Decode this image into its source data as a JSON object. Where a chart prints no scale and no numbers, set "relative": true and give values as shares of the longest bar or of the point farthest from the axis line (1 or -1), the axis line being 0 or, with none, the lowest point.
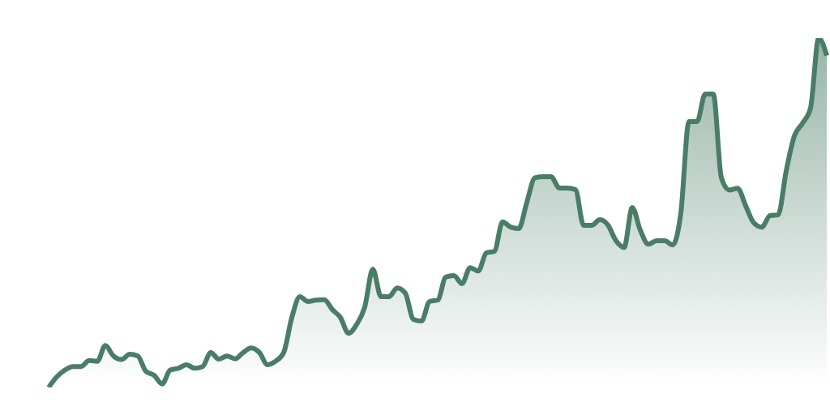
{
  "chart_data": {
    "type": "area",
    "relative": true,
    "color": "#4a7d68",
    "categories": [
      null,
      null,
      null,
      null,
      null,
      null,
      null,
      null,
      null,
      null,
      null,
      null,
      null,
      null,
      null,
      null,
      null,
      null,
      null,
      null,
      null,
      null,
      null,
      null,
      null,
      null,
      null,
      null,
      null,
      null,
      null,
      null,
      null,
      null,
      null,
      null,
      null,
      null,
      null,
      null,
      null,
      null,
      null,
      null,
      null,
      null,
      null,
      null,
      null,
      null,
      null,
      null,
      null,
      null,
      null,
      null,
      null,
      null,
      null,
      null,
      null,
      null,
      null,
      null,
      null,
      null,
      null,
      null,
      null,
      null,
      null,
      null,
      null,
      null,
      null,
      null,
      null,
      null,
      null,
      null,
      null,
      null,
      null,
      null,
      null,
      null,
      null,
      null,
      null,
      null,
      null,
      null,
      null,
      null,
      null,
      null,
      null
    ],
    "values": [
      0,
      0.03,
      0.05,
      0.06,
      0.06,
      0.077,
      0.075,
      0.12,
      0.09,
      0.08,
      0.095,
      0.09,
      0.046,
      0.035,
      0.01,
      0.05,
      0.055,
      0.065,
      0.055,
      0.06,
      0.1,
      0.081,
      0.09,
      0.082,
      0.1,
      0.113,
      0.1,
      0.065,
      0.075,
      0.1,
      0.2,
      0.26,
      0.246,
      0.25,
      0.251,
      0.223,
      0.2,
      0.155,
      0.18,
      0.23,
      0.339,
      0.26,
      0.26,
      0.285,
      0.27,
      0.195,
      0.19,
      0.246,
      0.25,
      0.316,
      0.32,
      0.297,
      0.343,
      0.333,
      0.385,
      0.39,
      0.474,
      0.459,
      0.455,
      0.53,
      0.6,
      0.603,
      0.603,
      0.571,
      0.571,
      0.566,
      0.464,
      0.464,
      0.48,
      0.465,
      0.42,
      0.401,
      0.515,
      0.45,
      0.41,
      0.42,
      0.42,
      0.408,
      0.5,
      0.761,
      0.761,
      0.84,
      0.84,
      0.6,
      0.565,
      0.57,
      0.52,
      0.471,
      0.459,
      0.492,
      0.494,
      0.62,
      0.72,
      0.756,
      0.8,
      1,
      0.95
    ]
  }
}
